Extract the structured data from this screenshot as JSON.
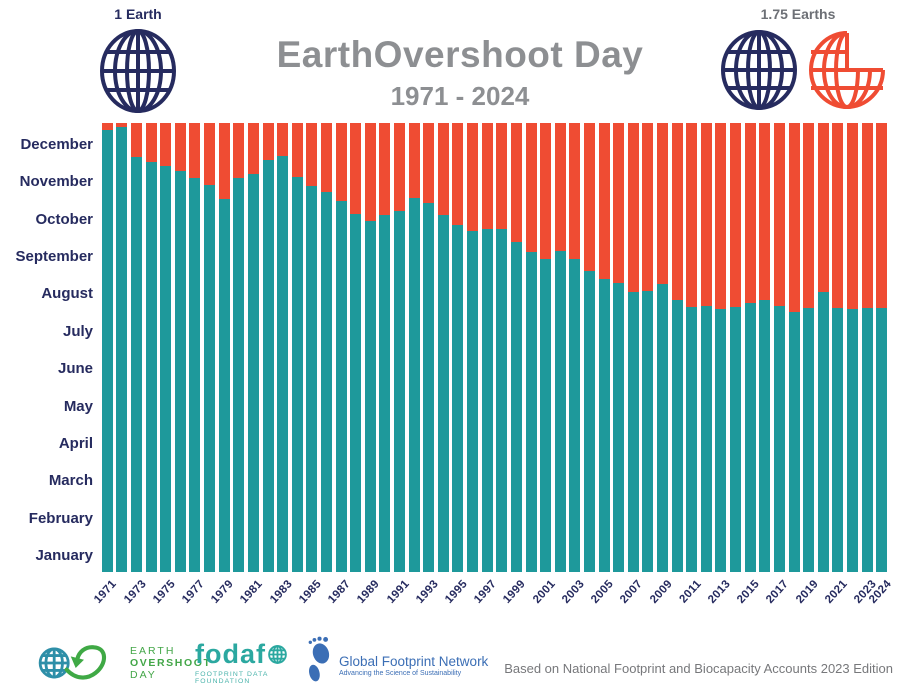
{
  "header": {
    "left_scale_label": "1 Earth",
    "right_scale_label": "1.75 Earths",
    "title": "EarthOvershoot Day",
    "subtitle": "1971 - 2024"
  },
  "chart_data": {
    "type": "bar",
    "stacked": true,
    "title": "EarthOvershoot Day",
    "subtitle": "1971 - 2024",
    "description": "Each yearly bar shows the share of the year within Earth's biocapacity (teal, bottom) and the overshoot remainder of the year (orange-red, top). The top of the teal segment marks Earth Overshoot Day.",
    "y_axis_month_labels": [
      "December",
      "November",
      "October",
      "September",
      "August",
      "July",
      "June",
      "May",
      "April",
      "March",
      "February",
      "January"
    ],
    "x_tick_labels": [
      "1971",
      "1973",
      "1975",
      "1977",
      "1979",
      "1981",
      "1983",
      "1985",
      "1987",
      "1989",
      "1991",
      "1993",
      "1995",
      "1997",
      "1999",
      "2001",
      "2003",
      "2005",
      "2007",
      "2009",
      "2011",
      "2013",
      "2015",
      "2017",
      "2019",
      "2021",
      "2023",
      "2024"
    ],
    "years": [
      1971,
      1972,
      1973,
      1974,
      1975,
      1976,
      1977,
      1978,
      1979,
      1980,
      1981,
      1982,
      1983,
      1984,
      1985,
      1986,
      1987,
      1988,
      1989,
      1990,
      1991,
      1992,
      1993,
      1994,
      1995,
      1996,
      1997,
      1998,
      1999,
      2000,
      2001,
      2002,
      2003,
      2004,
      2005,
      2006,
      2007,
      2008,
      2009,
      2010,
      2011,
      2012,
      2013,
      2014,
      2015,
      2016,
      2017,
      2018,
      2019,
      2020,
      2021,
      2022,
      2023,
      2024
    ],
    "overshoot_fraction_of_year": [
      0.984,
      0.992,
      0.924,
      0.913,
      0.905,
      0.892,
      0.878,
      0.863,
      0.831,
      0.877,
      0.886,
      0.917,
      0.927,
      0.879,
      0.859,
      0.847,
      0.827,
      0.797,
      0.782,
      0.795,
      0.804,
      0.832,
      0.821,
      0.795,
      0.773,
      0.76,
      0.764,
      0.763,
      0.736,
      0.712,
      0.696,
      0.714,
      0.696,
      0.671,
      0.652,
      0.643,
      0.624,
      0.626,
      0.642,
      0.606,
      0.591,
      0.592,
      0.585,
      0.591,
      0.598,
      0.606,
      0.592,
      0.58,
      0.589,
      0.624,
      0.589,
      0.585,
      0.589,
      0.587
    ],
    "approx_overshoot_date": [
      "Dec 25",
      "Dec 27",
      "Dec 3",
      "Nov 29",
      "Nov 26",
      "Nov 21",
      "Nov 16",
      "Nov 11",
      "Oct 30",
      "Nov 16",
      "Nov 19",
      "Dec 1",
      "Dec 4",
      "Nov 16",
      "Nov 9",
      "Nov 4",
      "Oct 28",
      "Oct 17",
      "Oct 12",
      "Oct 16",
      "Oct 20",
      "Oct 31",
      "Oct 26",
      "Oct 16",
      "Oct 8",
      "Oct 4",
      "Oct 5",
      "Oct 5",
      "Sep 25",
      "Sep 16",
      "Sep 11",
      "Sep 17",
      "Sep 11",
      "Sep 2",
      "Aug 25",
      "Aug 22",
      "Aug 15",
      "Aug 16",
      "Aug 22",
      "Aug 9",
      "Aug 3",
      "Aug 4",
      "Aug 1",
      "Aug 3",
      "Aug 6",
      "Aug 9",
      "Aug 4",
      "Jul 30",
      "Aug 3",
      "Aug 15",
      "Aug 3",
      "Aug 1",
      "Aug 3",
      "Aug 2"
    ],
    "legend_position": "none",
    "grid": false,
    "colors": {
      "within_biocapacity": "#1E999B",
      "overshoot": "#EF4C33",
      "axis_text": "#262B5F",
      "title_text": "#8D8F92"
    }
  },
  "icons": {
    "left_globe": "navy-wireframe-globe",
    "right_globe_full": "navy-wireframe-globe",
    "right_globe_partial": "orange-wireframe-globe-with-quarter-bite"
  },
  "footer": {
    "attribution": "Based on National Footprint and Biocapacity Accounts 2023 Edition",
    "eod_logo": {
      "line1": "EARTH",
      "line2": "OVERSHOOT",
      "line3": "DAY"
    },
    "fodafo": {
      "wordmark": "fodafo",
      "wordmark_display_prefix": "fodaf",
      "tagline": "FOOTPRINT DATA FOUNDATION"
    },
    "gfn": {
      "name": "Global Footprint Network",
      "tagline": "Advancing the Science of Sustainability"
    }
  }
}
